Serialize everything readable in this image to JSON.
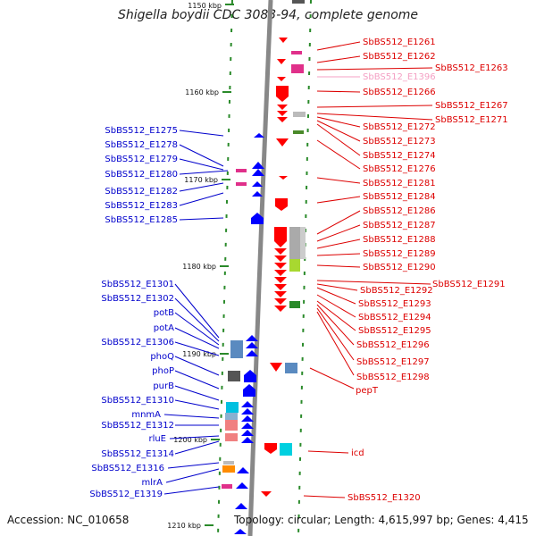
{
  "title": "Shigella boydii CDC 3083-94, complete genome",
  "accession": "Accession: NC_010658",
  "topology": "Topology: circular; Length: 4,615,997 bp; Genes: 4,415",
  "ruler": {
    "labels": [
      "1150 kbp",
      "1160 kbp",
      "1170 kbp",
      "1180 kbp",
      "1190 kbp",
      "1200 kbp",
      "1210 kbp"
    ]
  },
  "colors": {
    "left_label": "#0000cc",
    "right_label": "#dd0000",
    "faded_label": "#f4a0c4",
    "forward_arrow": "#0000ff",
    "reverse_arrow": "#ff0000",
    "backbone": "#888888"
  },
  "left_labels": [
    "SbBS512_E1275",
    "SbBS512_E1278",
    "SbBS512_E1279",
    "SbBS512_E1280",
    "SbBS512_E1282",
    "SbBS512_E1283",
    "SbBS512_E1285",
    "SbBS512_E1301",
    "SbBS512_E1302",
    "potB",
    "potA",
    "SbBS512_E1306",
    "phoQ",
    "phoP",
    "purB",
    "SbBS512_E1310",
    "mnmA",
    "SbBS512_E1312",
    "rluE",
    "SbBS512_E1314",
    "SbBS512_E1316",
    "mlrA",
    "SbBS512_E1319"
  ],
  "right_labels": [
    "SbBS512_E1261",
    "SbBS512_E1262",
    "SbBS512_E1263",
    "SbBS512_E1396",
    "SbBS512_E1266",
    "SbBS512_E1267",
    "SbBS512_E1271",
    "SbBS512_E1272",
    "SbBS512_E1273",
    "SbBS512_E1274",
    "SbBS512_E1276",
    "SbBS512_E1281",
    "SbBS512_E1284",
    "SbBS512_E1286",
    "SbBS512_E1287",
    "SbBS512_E1288",
    "SbBS512_E1289",
    "SbBS512_E1290",
    "SbBS512_E1291",
    "SbBS512_E1292",
    "SbBS512_E1293",
    "SbBS512_E1294",
    "SbBS512_E1295",
    "SbBS512_E1296",
    "SbBS512_E1297",
    "SbBS512_E1298",
    "pepT",
    "icd",
    "SbBS512_E1320"
  ]
}
